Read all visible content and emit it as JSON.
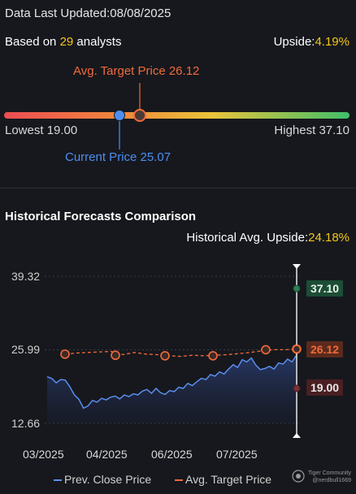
{
  "header": {
    "updated_label": "Data Last Updated:",
    "updated_date": "08/08/2025",
    "based_prefix": "Based on ",
    "analyst_count": "29",
    "based_suffix": " analysts",
    "upside_label": "Upside:",
    "upside_value": "4.19%"
  },
  "price_range": {
    "avg_target_label": "Avg. Target Price 26.12",
    "lowest_label": "Lowest 19.00",
    "highest_label": "Highest 37.10",
    "current_label": "Current Price 25.07",
    "low": 19.0,
    "high": 37.1,
    "current": 25.07,
    "avg_target": 26.12,
    "colors": {
      "current": "#4e8df2",
      "target": "#f26a3b"
    }
  },
  "historical": {
    "title": "Historical Forecasts Comparison",
    "upside_label": "Historical Avg. Upside:",
    "upside_value": "24.18%"
  },
  "chart_data": {
    "type": "line",
    "y_ticks": [
      "39.32",
      "25.99",
      "12.66"
    ],
    "ylim": [
      12.66,
      39.32
    ],
    "x_ticks": [
      "03/2025",
      "04/2025",
      "06/2025",
      "07/2025"
    ],
    "series": [
      {
        "name": "Prev. Close Price",
        "color": "#5b8def",
        "values": [
          21.1,
          20.8,
          20.0,
          20.6,
          20.5,
          19.3,
          17.8,
          17.0,
          15.4,
          15.8,
          16.8,
          16.5,
          17.2,
          16.9,
          17.4,
          17.6,
          17.1,
          17.8,
          17.5,
          18.0,
          17.8,
          18.5,
          18.8,
          18.1,
          19.0,
          18.2,
          17.9,
          18.6,
          18.4,
          19.2,
          19.0,
          19.9,
          19.5,
          20.2,
          20.8,
          20.6,
          21.5,
          21.2,
          22.0,
          21.6,
          22.5,
          23.3,
          22.8,
          24.2,
          23.8,
          24.5,
          23.2,
          22.4,
          22.6,
          23.0,
          22.5,
          23.6,
          23.4,
          24.3,
          23.8,
          25.07
        ]
      },
      {
        "name": "Avg. Target Price",
        "color": "#f26a3b",
        "values": [
          25.2,
          25.4,
          25.5,
          25.6,
          25.7,
          25.1,
          25.5,
          25.2,
          25.1,
          24.9,
          24.8,
          25.0,
          24.9,
          25.0,
          25.1,
          25.3,
          25.5,
          25.8,
          26.0,
          26.0,
          26.12
        ]
      }
    ],
    "markers": [
      25.2,
      25.0,
      24.9,
      24.9,
      26.0,
      26.12
    ],
    "forecast": {
      "high": "37.10",
      "avg": "26.12",
      "low": "19.00"
    },
    "legend": [
      "Prev. Close Price",
      "Avg. Target Price"
    ]
  },
  "watermark": {
    "brand": "Tiger Community",
    "user": "@nerdbull1669"
  }
}
